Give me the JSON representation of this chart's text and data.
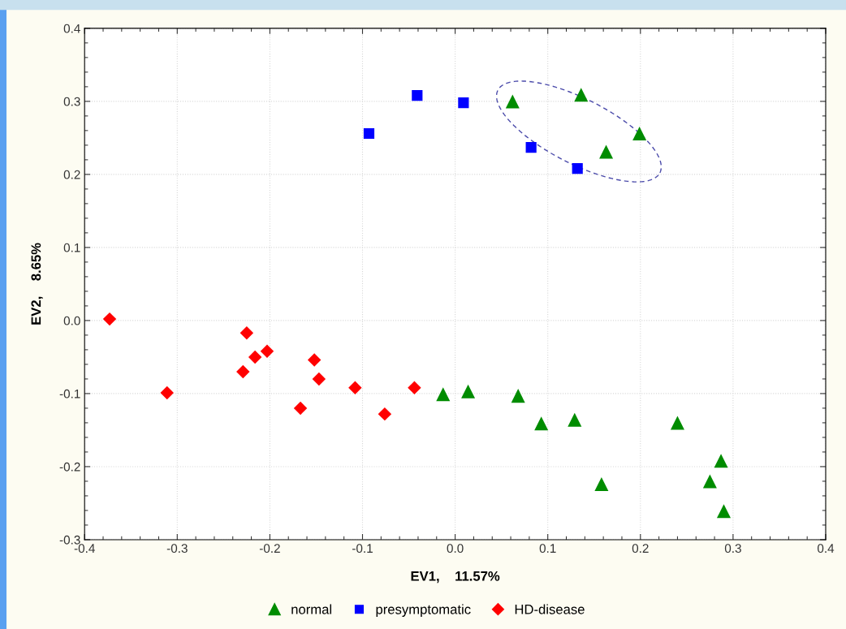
{
  "chart_data": {
    "type": "scatter",
    "xlabel": "EV1,    11.57%",
    "ylabel": "EV2,    8.65%",
    "xlim": [
      -0.4,
      0.4
    ],
    "xticks": [
      {
        "value": -0.4,
        "label": "-0.4"
      },
      {
        "value": -0.3,
        "label": "-0.3"
      },
      {
        "value": -0.2,
        "label": "-0.2"
      },
      {
        "value": -0.1,
        "label": "-0.1"
      },
      {
        "value": 0,
        "label": "0.0"
      },
      0.1,
      0.2,
      0.3,
      0.4
    ],
    "ylim": [
      -0.3,
      0.4
    ],
    "yticks": [
      {
        "value": -0.3,
        "label": "-0.3"
      },
      {
        "value": -0.2,
        "label": "-0.2"
      },
      {
        "value": -0.1,
        "label": "-0.1"
      },
      {
        "value": 0,
        "label": "0.0"
      },
      0.1,
      0.2,
      0.3,
      0.4
    ],
    "grid": true,
    "legend": "bottom",
    "series": [
      {
        "name": "normal",
        "color": "#008c00",
        "marker": "triangle",
        "x": [
          0.062,
          0.136,
          0.199,
          0.163,
          -0.013,
          0.014,
          0.068,
          0.093,
          0.129,
          0.24,
          0.287,
          0.275,
          0.29,
          0.158
        ],
        "values": [
          0.3,
          0.309,
          0.256,
          0.231,
          -0.101,
          -0.097,
          -0.103,
          -0.141,
          -0.136,
          -0.14,
          -0.192,
          -0.22,
          -0.261,
          -0.224
        ]
      },
      {
        "name": "presymptomatic",
        "color": "#0000ff",
        "marker": "square",
        "x": [
          -0.041,
          0.009,
          -0.093,
          0.082,
          0.132
        ],
        "values": [
          0.308,
          0.298,
          0.256,
          0.237,
          0.208
        ]
      },
      {
        "name": "HD-disease",
        "color": "#ff0000",
        "marker": "diamond",
        "x": [
          -0.373,
          -0.311,
          -0.225,
          -0.216,
          -0.203,
          -0.229,
          -0.152,
          -0.147,
          -0.167,
          -0.108,
          -0.076,
          -0.044
        ],
        "values": [
          0.002,
          -0.099,
          -0.017,
          -0.05,
          -0.042,
          -0.07,
          -0.054,
          -0.08,
          -0.12,
          -0.092,
          -0.128,
          -0.092
        ]
      }
    ]
  }
}
